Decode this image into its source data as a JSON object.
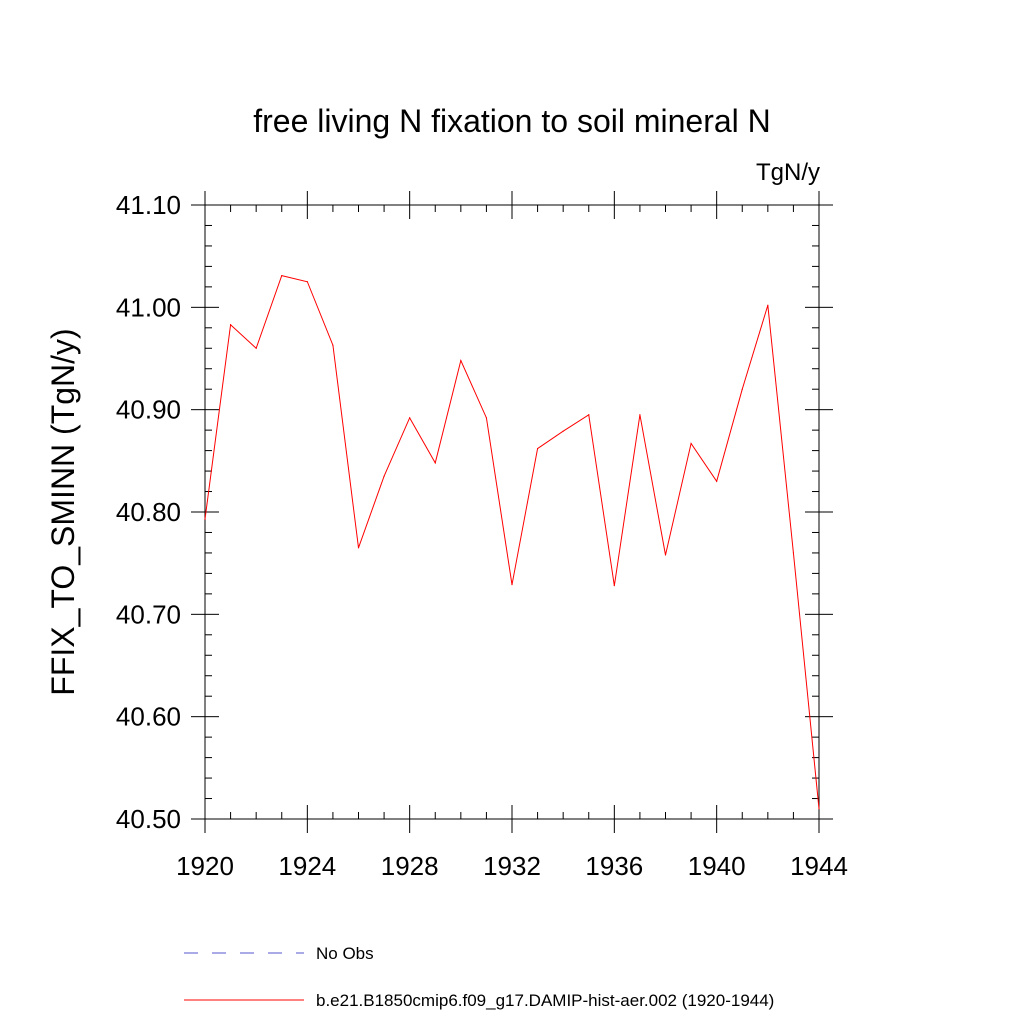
{
  "chart_data": {
    "type": "line",
    "title": "free living N fixation to soil mineral N",
    "units_label": "TgN/y",
    "ylabel": "FFIX_TO_SMINN  (TgN/y)",
    "xlabel": "",
    "xlim": [
      1920,
      1944
    ],
    "ylim": [
      40.5,
      41.1
    ],
    "x_ticks": [
      1920,
      1924,
      1928,
      1932,
      1936,
      1940,
      1944
    ],
    "x_tick_labels": [
      "1920",
      "1924",
      "1928",
      "1932",
      "1936",
      "1940",
      "1944"
    ],
    "y_ticks": [
      40.5,
      40.6,
      40.7,
      40.8,
      40.9,
      41.0,
      41.1
    ],
    "y_tick_labels": [
      "40.50",
      "40.60",
      "40.70",
      "40.80",
      "40.90",
      "41.00",
      "41.10"
    ],
    "grid": false,
    "legend_position": "bottom",
    "series": [
      {
        "name": "No Obs",
        "color": "#5555cc",
        "style": "dashed",
        "x": [],
        "values": []
      },
      {
        "name": "b.e21.B1850cmip6.f09_g17.DAMIP-hist-aer.002 (1920-1944)",
        "color": "#ff0000",
        "style": "solid",
        "x": [
          1920,
          1921,
          1922,
          1923,
          1924,
          1925,
          1926,
          1927,
          1928,
          1929,
          1930,
          1931,
          1932,
          1933,
          1934,
          1935,
          1936,
          1937,
          1938,
          1939,
          1940,
          1941,
          1942,
          1943,
          1944
        ],
        "values": [
          40.793,
          40.983,
          40.96,
          41.031,
          41.025,
          40.963,
          40.765,
          40.835,
          40.892,
          40.848,
          40.948,
          40.892,
          40.729,
          40.862,
          40.879,
          40.895,
          40.728,
          40.895,
          40.758,
          40.867,
          40.83,
          40.92,
          41.002,
          40.76,
          40.51
        ]
      }
    ]
  }
}
